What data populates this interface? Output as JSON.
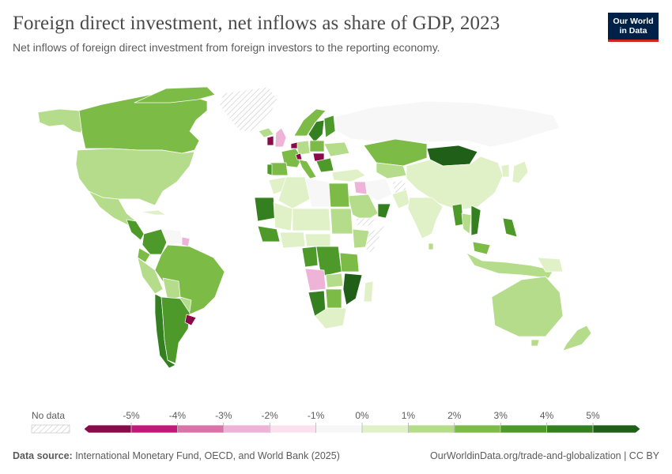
{
  "header": {
    "title": "Foreign direct investment, net inflows as share of GDP, 2023",
    "subtitle": "Net inflows of foreign direct investment from foreign investors to the reporting economy.",
    "logo_line1": "Our World",
    "logo_line2": "in Data"
  },
  "legend": {
    "no_data_label": "No data",
    "ticks": [
      "-5%",
      "-4%",
      "-3%",
      "-2%",
      "-1%",
      "0%",
      "1%",
      "2%",
      "3%",
      "4%",
      "5%"
    ],
    "colors": [
      "#8a0a4a",
      "#c2187a",
      "#d973a8",
      "#eeb3d6",
      "#fbe0ef",
      "#f7f7f7",
      "#e0f0c7",
      "#b5dc8a",
      "#7dbb47",
      "#4d9a2a",
      "#347f20",
      "#1f5f17"
    ]
  },
  "footer": {
    "source_label": "Data source:",
    "source_text": " International Monetary Fund, OECD, and World Bank (2025)",
    "url_text": "OurWorldinData.org/trade-and-globalization | CC BY"
  },
  "chart_data": {
    "type": "choropleth",
    "title": "Foreign direct investment, net inflows as share of GDP, 2023",
    "scale_unit": "%",
    "scale_range": [
      -5,
      5
    ],
    "regions": [
      {
        "name": "Canada",
        "bin": "2-3%"
      },
      {
        "name": "Alaska",
        "bin": "1-2%"
      },
      {
        "name": "Greenland",
        "bin": "no data"
      },
      {
        "name": "United States",
        "bin": "1-2%"
      },
      {
        "name": "Mexico",
        "bin": "1-2%"
      },
      {
        "name": "Brazil",
        "bin": "2-3%"
      },
      {
        "name": "Argentina",
        "bin": "3-4%"
      },
      {
        "name": "Uruguay",
        "bin": "< -5%"
      },
      {
        "name": "Colombia/Peru",
        "bin": "2-3%"
      },
      {
        "name": "Russia",
        "bin": "0-1%"
      },
      {
        "name": "Kazakhstan",
        "bin": "2-3%"
      },
      {
        "name": "Mongolia",
        "bin": "> 5%"
      },
      {
        "name": "China",
        "bin": "0-1%"
      },
      {
        "name": "India",
        "bin": "0-1%"
      },
      {
        "name": "Vietnam",
        "bin": "4-5%"
      },
      {
        "name": "Australia",
        "bin": "1-2%"
      },
      {
        "name": "New Zealand",
        "bin": "1-2%"
      },
      {
        "name": "Angola",
        "bin": "-2 to -1%"
      },
      {
        "name": "DR Congo",
        "bin": "3-4%"
      },
      {
        "name": "Namibia",
        "bin": "4-5%"
      },
      {
        "name": "Mozambique",
        "bin": "> 5%"
      },
      {
        "name": "Iraq",
        "bin": "-2 to -1%"
      },
      {
        "name": "Saudi Arabia",
        "bin": "1-2%"
      }
    ]
  }
}
